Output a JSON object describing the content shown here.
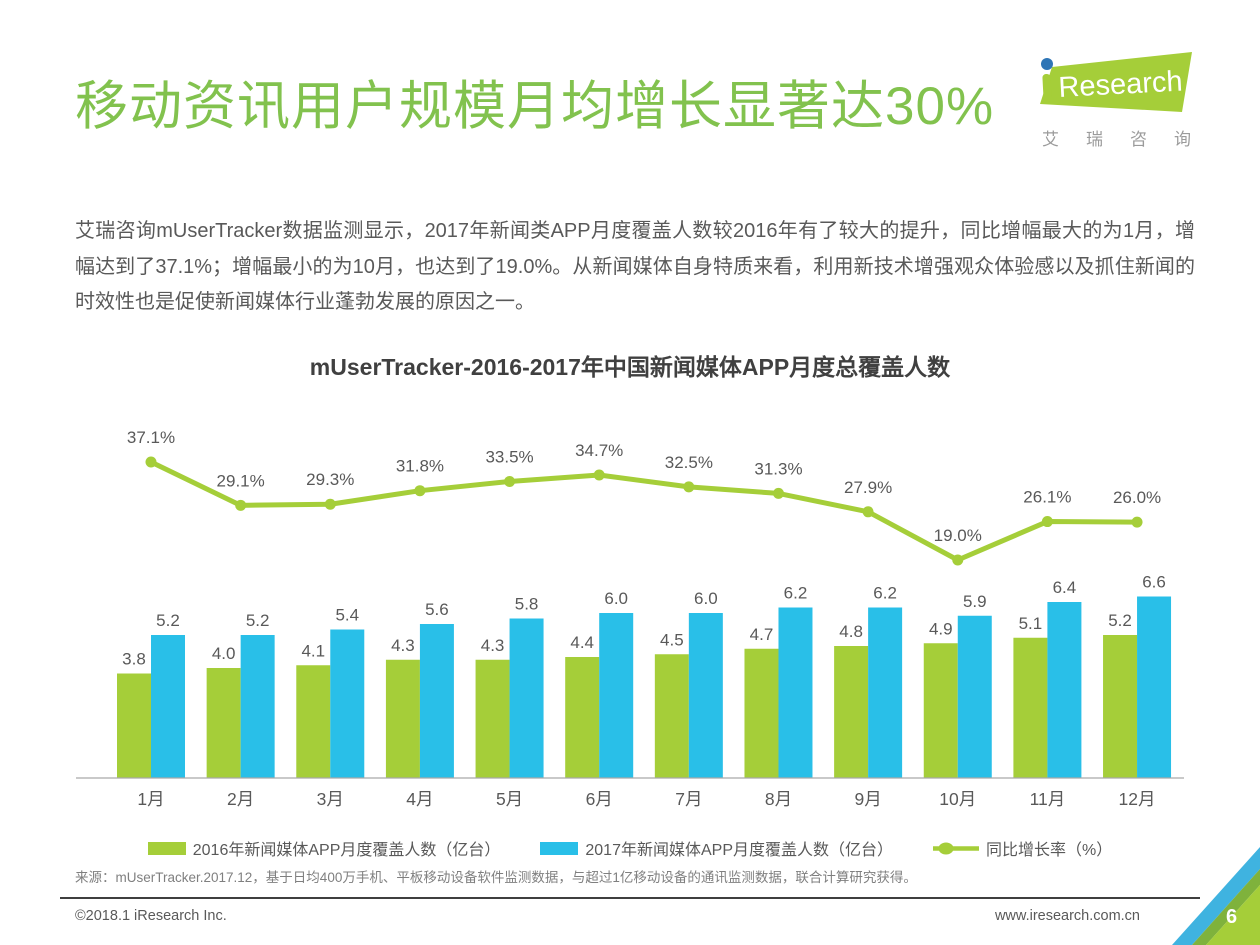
{
  "page": {
    "title": "移动资讯用户规模月均增长显著达30%",
    "accent_color": "#82C24E",
    "intro": "艾瑞咨询mUserTracker数据监测显示，2017年新闻类APP月度覆盖人数较2016年有了较大的提升，同比增幅最大的为1月，增幅达到了37.1%；增幅最小的为10月，也达到了19.0%。从新闻媒体自身特质来看，利用新技术增强观众体验感以及抓住新闻的时效性也是促使新闻媒体行业蓬勃发展的原因之一。",
    "source_note": "来源：mUserTracker.2017.12，基于日均400万手机、平板移动设备软件监测数据，与超过1亿移动设备的通讯监测数据，联合计算研究获得。",
    "footer": {
      "copyright": "©2018.1 iResearch Inc.",
      "website": "www.iresearch.com.cn",
      "page_number": "6"
    },
    "logo": {
      "brand_i": "i",
      "brand": "Research",
      "brand_cn": "艾瑞咨询",
      "green": "#A5CE39",
      "dot_blue": "#2E75B6"
    }
  },
  "chart_data": {
    "type": "bar",
    "subtype": "grouped bars + line overlay",
    "title": "mUserTracker-2016-2017年中国新闻媒体APP月度总覆盖人数",
    "categories": [
      "1月",
      "2月",
      "3月",
      "4月",
      "5月",
      "6月",
      "7月",
      "8月",
      "9月",
      "10月",
      "11月",
      "12月"
    ],
    "series": [
      {
        "name": "2016年新闻媒体APP月度覆盖人数（亿台）",
        "type": "bar",
        "color": "#A5CE39",
        "values": [
          3.8,
          4.0,
          4.1,
          4.3,
          4.3,
          4.4,
          4.5,
          4.7,
          4.8,
          4.9,
          5.1,
          5.2
        ]
      },
      {
        "name": "2017年新闻媒体APP月度覆盖人数（亿台）",
        "type": "bar",
        "color": "#29BFE8",
        "values": [
          5.2,
          5.2,
          5.4,
          5.6,
          5.8,
          6.0,
          6.0,
          6.2,
          6.2,
          5.9,
          6.4,
          6.6
        ]
      },
      {
        "name": "同比增长率（%）",
        "type": "line",
        "color": "#A5CE39",
        "values": [
          37.1,
          29.1,
          29.3,
          31.8,
          33.5,
          34.7,
          32.5,
          31.3,
          27.9,
          19.0,
          26.1,
          26.0
        ]
      }
    ],
    "xlabel": "",
    "ylabel": "",
    "bar_unit": "亿台",
    "line_unit": "%",
    "grid": false,
    "y_axis_shown": false,
    "legend_position": "bottom"
  }
}
